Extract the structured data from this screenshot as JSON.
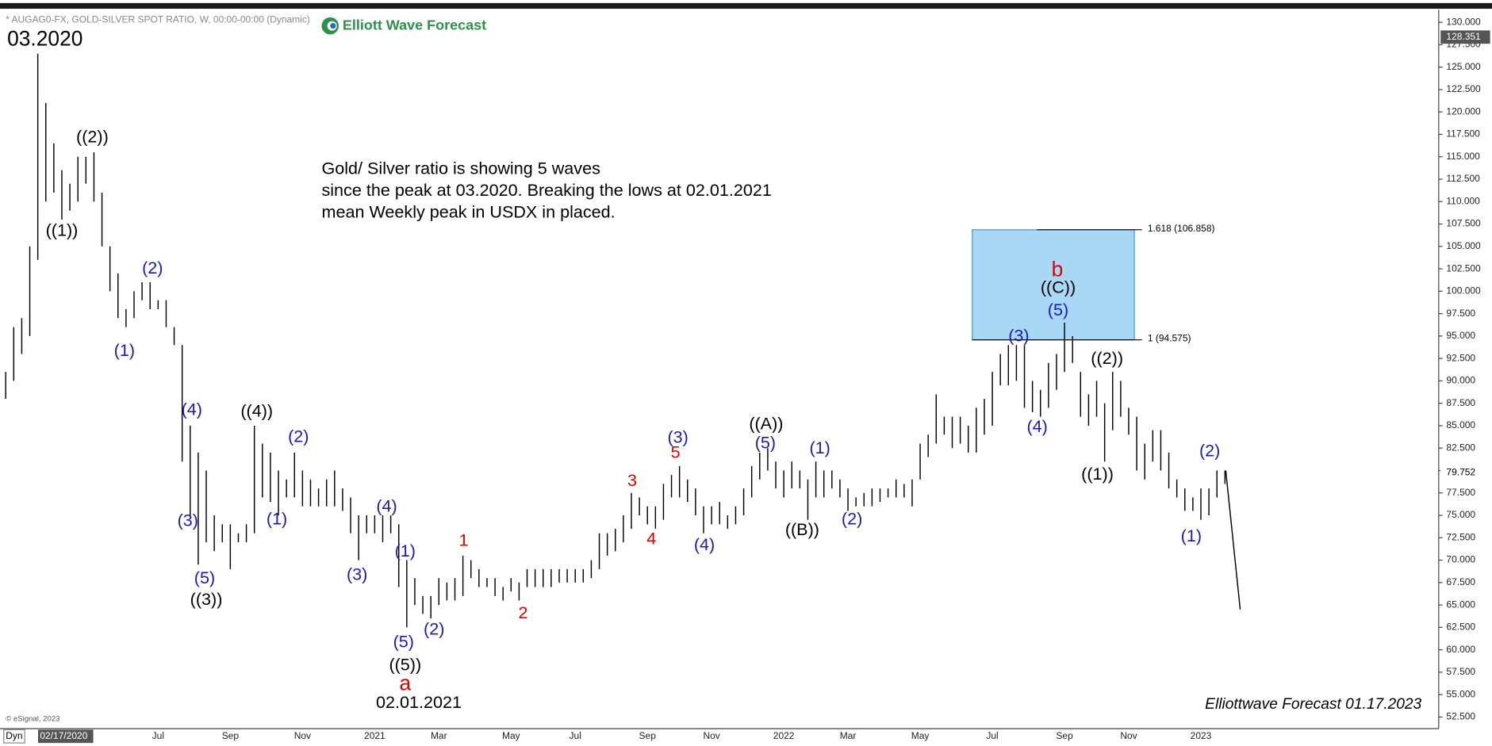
{
  "chart_data": {
    "type": "hl-bar",
    "title": "* AUGAG0-FX, GOLD-SILVER SPOT RATIO, W, 00:00-00:00 (Dynamic)",
    "logo": "Elliott Wave Forecast",
    "note": [
      "Gold/ Silver ratio is showing 5 waves",
      "since the peak at 03.2020. Breaking the lows at 02.01.2021",
      "mean Weekly peak in USDX in placed."
    ],
    "footer": "Elliottwave Forecast  01.17.2023",
    "copyright": "© eSignal, 2023",
    "mode": "Dyn",
    "range_start": "02/17/2020",
    "color": "#000000",
    "ylim": [
      51.2,
      131.3
    ],
    "yticks": [
      {
        "value": 52.5,
        "label": "52.500"
      },
      {
        "value": 55,
        "label": "55.000"
      },
      {
        "value": 57.5,
        "label": "57.500"
      },
      {
        "value": 60,
        "label": "60.000"
      },
      {
        "value": 62.5,
        "label": "62.500"
      },
      {
        "value": 65,
        "label": "65.000"
      },
      {
        "value": 67.5,
        "label": "67.500"
      },
      {
        "value": 70,
        "label": "70.000"
      },
      {
        "value": 72.5,
        "label": "72.500"
      },
      {
        "value": 75,
        "label": "75.000"
      },
      {
        "value": 77.5,
        "label": "77.500"
      },
      {
        "value": 80,
        "label": "80.000"
      },
      {
        "value": 82.5,
        "label": "82.500"
      },
      {
        "value": 85,
        "label": "85.000"
      },
      {
        "value": 87.5,
        "label": "87.500"
      },
      {
        "value": 90,
        "label": "90.000"
      },
      {
        "value": 92.5,
        "label": "92.500"
      },
      {
        "value": 95,
        "label": "95.000"
      },
      {
        "value": 97.5,
        "label": "97.500"
      },
      {
        "value": 100,
        "label": "100.000"
      },
      {
        "value": 102.5,
        "label": "102.500"
      },
      {
        "value": 105,
        "label": "105.000"
      },
      {
        "value": 107.5,
        "label": "107.500"
      },
      {
        "value": 110,
        "label": "110.000"
      },
      {
        "value": 112.5,
        "label": "112.500"
      },
      {
        "value": 115,
        "label": "115.000"
      },
      {
        "value": 117.5,
        "label": "117.500"
      },
      {
        "value": 120,
        "label": "120.000"
      },
      {
        "value": 122.5,
        "label": "122.500"
      },
      {
        "value": 125,
        "label": "125.000"
      },
      {
        "value": 127.5,
        "label": "127.500"
      },
      {
        "value": 130,
        "label": "130.000"
      }
    ],
    "categories": [
      null,
      null,
      null,
      null,
      null,
      null,
      null,
      null,
      null,
      null,
      null,
      null,
      null,
      null,
      null,
      null,
      null,
      null,
      null,
      "Jul",
      null,
      null,
      null,
      null,
      null,
      null,
      null,
      null,
      "Sep",
      null,
      null,
      null,
      null,
      null,
      null,
      null,
      null,
      "Nov",
      null,
      null,
      null,
      null,
      null,
      null,
      null,
      null,
      "2021",
      null,
      null,
      null,
      null,
      null,
      null,
      null,
      "Mar",
      null,
      null,
      null,
      null,
      null,
      null,
      null,
      null,
      "May",
      null,
      null,
      null,
      null,
      null,
      null,
      null,
      "Jul",
      null,
      null,
      null,
      null,
      null,
      null,
      null,
      null,
      "Sep",
      null,
      null,
      null,
      null,
      null,
      null,
      null,
      "Nov",
      null,
      null,
      null,
      null,
      null,
      null,
      null,
      null,
      "2022",
      null,
      null,
      null,
      null,
      null,
      null,
      null,
      "Mar",
      null,
      null,
      null,
      null,
      null,
      null,
      null,
      null,
      "May",
      null,
      null,
      null,
      null,
      null,
      null,
      null,
      null,
      "Jul",
      null,
      null,
      null,
      null,
      null,
      null,
      null,
      null,
      "Sep",
      null,
      null,
      null,
      null,
      null,
      null,
      null,
      "Nov",
      null,
      null,
      null,
      null,
      null,
      null,
      null,
      null,
      "2023",
      null,
      null,
      null
    ],
    "high": [
      91,
      96,
      97,
      105,
      126.5,
      121,
      116.5,
      113.5,
      112,
      115,
      115,
      115.5,
      111,
      105,
      102,
      98,
      100,
      101,
      101,
      99,
      99,
      96,
      94,
      85,
      82,
      80,
      75,
      74,
      74,
      73,
      74,
      85,
      83,
      82,
      80,
      79,
      82,
      80,
      79,
      78,
      79,
      80,
      78,
      77,
      75,
      75,
      75,
      75,
      75,
      74,
      70,
      68,
      66,
      66,
      68,
      67.5,
      68,
      70.5,
      70,
      69,
      68,
      68,
      67,
      68,
      67.5,
      69,
      69,
      69,
      69,
      69,
      69,
      69,
      69,
      70,
      73,
      73,
      73.5,
      75,
      77.5,
      77,
      76,
      76,
      78.5,
      79.5,
      80.5,
      79,
      78,
      76,
      76,
      76.5,
      75,
      76,
      78,
      80.5,
      82,
      82.5,
      81,
      80,
      81,
      80,
      79,
      81,
      80,
      80,
      79,
      78,
      77,
      77.5,
      78,
      78,
      78,
      79,
      78.5,
      79,
      83,
      84,
      88.5,
      86,
      86,
      86,
      85,
      87,
      88,
      91,
      93,
      94,
      94,
      94,
      90,
      89,
      92,
      93,
      96.5,
      95,
      91,
      88.5,
      90,
      87.5,
      91,
      90,
      87,
      86,
      83,
      84.5,
      84.5,
      82,
      79,
      78,
      77,
      78,
      78,
      80,
      80
    ],
    "low": [
      88,
      90,
      93,
      95,
      103.5,
      110,
      111,
      108,
      109,
      110,
      112,
      110,
      105,
      100,
      97,
      96,
      97,
      99,
      98,
      98,
      96,
      94,
      81,
      75,
      69.5,
      72,
      71,
      72,
      69,
      72,
      72,
      73,
      77,
      76.5,
      75,
      77,
      77,
      76,
      76,
      76,
      76,
      76,
      75.5,
      73,
      70,
      73,
      73,
      72,
      73,
      67,
      62.5,
      65,
      64,
      63.5,
      65,
      65.5,
      65.5,
      66,
      68,
      67,
      67,
      66,
      65.5,
      66.5,
      65.5,
      67,
      67,
      67,
      67,
      67.5,
      67.5,
      67.5,
      67.5,
      68,
      69,
      70.5,
      71,
      72,
      73.5,
      75,
      74,
      73.5,
      74.5,
      77,
      77,
      76.5,
      75,
      73,
      74,
      74,
      73.5,
      74,
      75,
      77,
      79,
      80,
      78,
      77,
      78,
      78,
      74.5,
      77,
      77,
      78,
      77,
      75.5,
      76,
      76,
      76,
      76.5,
      77,
      77,
      77,
      76,
      79,
      81.5,
      83,
      84,
      82.5,
      83,
      82,
      82,
      84,
      85,
      89.5,
      89.5,
      90,
      87,
      86.5,
      86,
      87,
      89,
      91,
      92,
      86,
      85,
      86,
      81,
      84.5,
      86,
      84,
      80,
      79,
      81,
      80,
      78,
      77,
      75.5,
      75.5,
      74.5,
      75,
      77,
      78.5
    ],
    "projection": [
      80,
      64.5
    ],
    "price_tags": [
      {
        "value": 128.351,
        "label": "128.351"
      },
      {
        "value": 79.752,
        "label": "79.752"
      }
    ],
    "fib_zone": {
      "x": [
        120.5,
        140.7
      ],
      "color": "#a9d8f7",
      "levels": [
        {
          "value": 106.858,
          "label": "1.618 (106.858)"
        },
        {
          "value": 94.575,
          "label": "1 (94.575)"
        }
      ]
    },
    "annotations": [
      {
        "text": "03.2020",
        "color": "#000000",
        "x": 4.9,
        "y": 128.0,
        "size": "large"
      },
      {
        "text": "((1))",
        "color": "#000000",
        "x": 7,
        "y": 106.7
      },
      {
        "text": "((2))",
        "color": "#000000",
        "x": 10.8,
        "y": 117.1
      },
      {
        "text": "(2)",
        "color": "#1a1ab8",
        "x": 18.3,
        "y": 102.5
      },
      {
        "text": "(1)",
        "color": "#1a1ab8",
        "x": 14.8,
        "y": 93.3
      },
      {
        "text": "(4)",
        "color": "#1a1ab8",
        "x": 23.2,
        "y": 86.7
      },
      {
        "text": "((4))",
        "color": "#000000",
        "x": 31.3,
        "y": 86.5
      },
      {
        "text": "(2)",
        "color": "#1a1ab8",
        "x": 36.5,
        "y": 83.7
      },
      {
        "text": "(3)",
        "color": "#1a1ab8",
        "x": 22.7,
        "y": 74.3
      },
      {
        "text": "(1)",
        "color": "#1a1ab8",
        "x": 33.8,
        "y": 74.5
      },
      {
        "text": "(5)",
        "color": "#1a1ab8",
        "x": 24.8,
        "y": 67.9
      },
      {
        "text": "((3))",
        "color": "#000000",
        "x": 25,
        "y": 65.5
      },
      {
        "text": "(4)",
        "color": "#1a1ab8",
        "x": 47.5,
        "y": 75.9
      },
      {
        "text": "(3)",
        "color": "#1a1ab8",
        "x": 43.8,
        "y": 68.3
      },
      {
        "text": "(1)",
        "color": "#1a1ab8",
        "x": 49.8,
        "y": 70.9
      },
      {
        "text": "(5)",
        "color": "#1a1ab8",
        "x": 49.6,
        "y": 60.8
      },
      {
        "text": "(2)",
        "color": "#1a1ab8",
        "x": 53.4,
        "y": 62.2
      },
      {
        "text": "((5))",
        "color": "#000000",
        "x": 49.8,
        "y": 58.2
      },
      {
        "text": "a",
        "color": "#e00000",
        "x": 49.8,
        "y": 56.1,
        "size": "large"
      },
      {
        "text": "02.01.2021",
        "color": "#000000",
        "x": 51.5,
        "y": 54.0
      },
      {
        "text": "1",
        "color": "#e00000",
        "x": 57.1,
        "y": 72.1
      },
      {
        "text": "2",
        "color": "#e00000",
        "x": 64.5,
        "y": 64.0
      },
      {
        "text": "3",
        "color": "#e00000",
        "x": 78.1,
        "y": 78.8
      },
      {
        "text": "4",
        "color": "#e00000",
        "x": 80.5,
        "y": 72.3
      },
      {
        "text": "5",
        "color": "#e00000",
        "x": 83.5,
        "y": 81.9
      },
      {
        "text": "(3)",
        "color": "#1a1ab8",
        "x": 83.8,
        "y": 83.6
      },
      {
        "text": "(4)",
        "color": "#1a1ab8",
        "x": 87.1,
        "y": 71.6
      },
      {
        "text": "((A))",
        "color": "#000000",
        "x": 94.8,
        "y": 85.1
      },
      {
        "text": "(5)",
        "color": "#1a1ab8",
        "x": 94.7,
        "y": 83.0
      },
      {
        "text": "((B))",
        "color": "#000000",
        "x": 99.3,
        "y": 73.3
      },
      {
        "text": "(1)",
        "color": "#1a1ab8",
        "x": 101.5,
        "y": 82.4
      },
      {
        "text": "(2)",
        "color": "#1a1ab8",
        "x": 105.5,
        "y": 74.5
      },
      {
        "text": "b",
        "color": "#e00000",
        "x": 131.1,
        "y": 102.3,
        "size": "large"
      },
      {
        "text": "((C))",
        "color": "#000000",
        "x": 131.2,
        "y": 100.3
      },
      {
        "text": "(5)",
        "color": "#1a1ab8",
        "x": 131.2,
        "y": 97.8
      },
      {
        "text": "(3)",
        "color": "#1a1ab8",
        "x": 126.3,
        "y": 94.9
      },
      {
        "text": "(4)",
        "color": "#1a1ab8",
        "x": 128.6,
        "y": 84.8
      },
      {
        "text": "((2))",
        "color": "#000000",
        "x": 137.3,
        "y": 92.4
      },
      {
        "text": "((1))",
        "color": "#000000",
        "x": 136.1,
        "y": 79.5
      },
      {
        "text": "(2)",
        "color": "#1a1ab8",
        "x": 150.1,
        "y": 82.1
      },
      {
        "text": "(1)",
        "color": "#1a1ab8",
        "x": 147.8,
        "y": 72.6
      }
    ]
  }
}
